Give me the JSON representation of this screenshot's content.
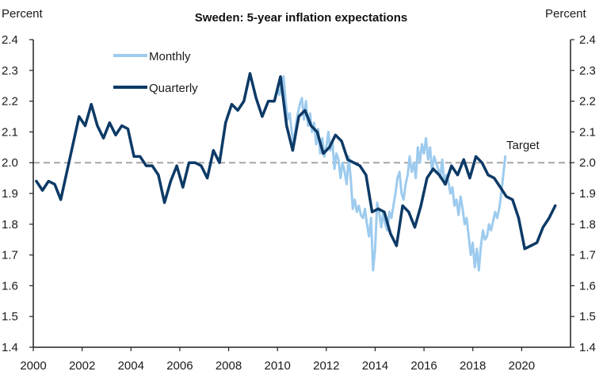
{
  "chart_data": {
    "type": "line",
    "title": "Sweden: 5-year inflation expectations",
    "ylabel_left": "Percent",
    "ylabel_right": "Percent",
    "xlabel": "",
    "xlim": [
      2000,
      2022
    ],
    "ylim": [
      1.4,
      2.4
    ],
    "x_ticks": [
      2000,
      2002,
      2004,
      2006,
      2008,
      2010,
      2012,
      2014,
      2016,
      2018,
      2020
    ],
    "x_tick_labels": [
      "2000",
      "2002",
      "2004",
      "2006",
      "2008",
      "2010",
      "2012",
      "2014",
      "2016",
      "2018",
      "2020"
    ],
    "y_ticks": [
      1.4,
      1.5,
      1.6,
      1.7,
      1.8,
      1.9,
      2.0,
      2.1,
      2.2,
      2.3,
      2.4
    ],
    "y_tick_labels": [
      "1.4",
      "1.5",
      "1.6",
      "1.7",
      "1.8",
      "1.9",
      "2.0",
      "2.1",
      "2.2",
      "2.3",
      "2.4"
    ],
    "grid": false,
    "legend_position": "top-left",
    "reference_line": {
      "label": "Target",
      "value": 2.0,
      "style": "dashed",
      "color": "#a6a6a6"
    },
    "series": [
      {
        "name": "Monthly",
        "color": "#9dcbee",
        "x_start": 2010.0,
        "x_step": 0.0833,
        "values": [
          2.24,
          2.22,
          2.26,
          2.28,
          2.2,
          2.14,
          2.16,
          2.1,
          2.06,
          2.12,
          2.16,
          2.19,
          2.21,
          2.14,
          2.2,
          2.12,
          2.16,
          2.1,
          2.13,
          2.06,
          2.11,
          2.03,
          2.08,
          2.02,
          2.05,
          2.1,
          2.04,
          2.07,
          1.98,
          2.03,
          2.01,
          1.95,
          2.0,
          1.97,
          1.93,
          2.02,
          1.95,
          1.85,
          1.88,
          1.84,
          1.86,
          1.83,
          1.82,
          1.85,
          1.8,
          1.76,
          1.82,
          1.65,
          1.72,
          1.87,
          1.84,
          1.79,
          1.84,
          1.8,
          1.78,
          1.84,
          1.82,
          1.86,
          1.9,
          1.95,
          1.97,
          1.9,
          1.88,
          1.93,
          1.96,
          2.02,
          1.97,
          2.0,
          1.95,
          2.05,
          2.0,
          2.06,
          2.03,
          2.08,
          2.01,
          2.05,
          1.97,
          2.02,
          2.0,
          1.98,
          1.95,
          2.01,
          1.93,
          1.96,
          1.94,
          1.9,
          1.92,
          1.86,
          1.88,
          1.83,
          1.89,
          1.85,
          1.8,
          1.82,
          1.76,
          1.7,
          1.74,
          1.66,
          1.72,
          1.65,
          1.73,
          1.78,
          1.75,
          1.76,
          1.8,
          1.78,
          1.81,
          1.84,
          1.82,
          1.85,
          1.9,
          1.96,
          2.02
        ]
      },
      {
        "name": "Quarterly",
        "color": "#0d3a66",
        "x_start": 2000.125,
        "x_step": 0.25,
        "values": [
          1.94,
          1.91,
          1.94,
          1.93,
          1.88,
          1.97,
          2.06,
          2.15,
          2.12,
          2.19,
          2.12,
          2.08,
          2.13,
          2.09,
          2.12,
          2.11,
          2.02,
          2.02,
          1.99,
          1.99,
          1.96,
          1.87,
          1.94,
          1.99,
          1.92,
          2.0,
          2.0,
          1.99,
          1.95,
          2.04,
          2.0,
          2.13,
          2.19,
          2.17,
          2.2,
          2.29,
          2.21,
          2.15,
          2.2,
          2.2,
          2.28,
          2.12,
          2.04,
          2.15,
          2.17,
          2.12,
          2.1,
          2.03,
          2.05,
          2.09,
          2.07,
          2.01,
          2.0,
          1.99,
          1.96,
          1.84,
          1.85,
          1.84,
          1.77,
          1.73,
          1.86,
          1.84,
          1.79,
          1.86,
          1.95,
          1.98,
          1.96,
          1.93,
          1.99,
          1.96,
          2.01,
          1.95,
          2.02,
          2.0,
          1.96,
          1.95,
          1.92,
          1.89,
          1.88,
          1.82,
          1.72,
          1.73,
          1.74,
          1.79,
          1.82,
          1.86
        ]
      }
    ]
  }
}
